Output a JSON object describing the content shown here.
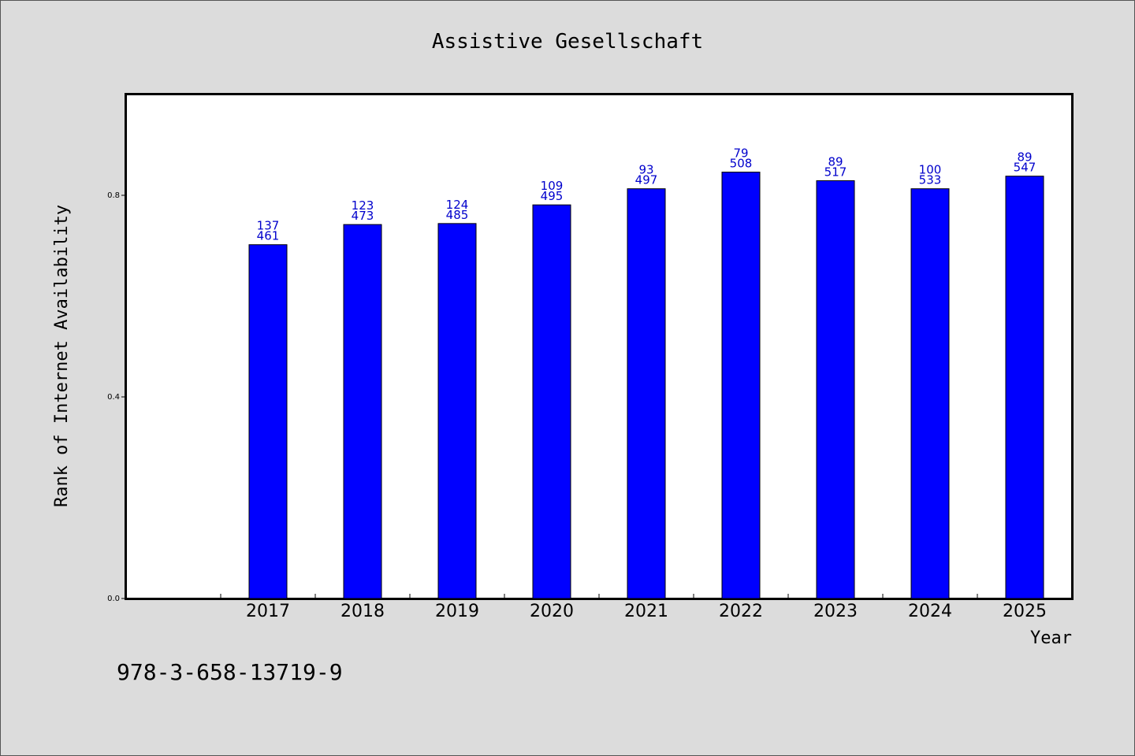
{
  "chart_data": {
    "type": "bar",
    "title": "Assistive Gesellschaft",
    "xlabel": "Year",
    "ylabel": "Rank of Internet Availability",
    "categories": [
      "2017",
      "2018",
      "2019",
      "2020",
      "2021",
      "2022",
      "2023",
      "2024",
      "2025"
    ],
    "values": [
      0.702,
      0.742,
      0.744,
      0.781,
      0.813,
      0.846,
      0.829,
      0.813,
      0.838
    ],
    "label_top": [
      "137",
      "123",
      "124",
      "109",
      "93",
      "79",
      "89",
      "100",
      "89"
    ],
    "label_bottom": [
      "461",
      "473",
      "485",
      "495",
      "497",
      "508",
      "517",
      "533",
      "547"
    ],
    "ylim": [
      0,
      1.0
    ],
    "yticks": [
      0.0,
      0.4,
      0.8
    ],
    "ytick_labels": [
      "0.0",
      "0.4",
      "0.8"
    ],
    "grid": false,
    "bar_color": "#0000ff",
    "label_color": "#0000cc"
  },
  "footer": {
    "isbn": "978-3-658-13719-9"
  }
}
